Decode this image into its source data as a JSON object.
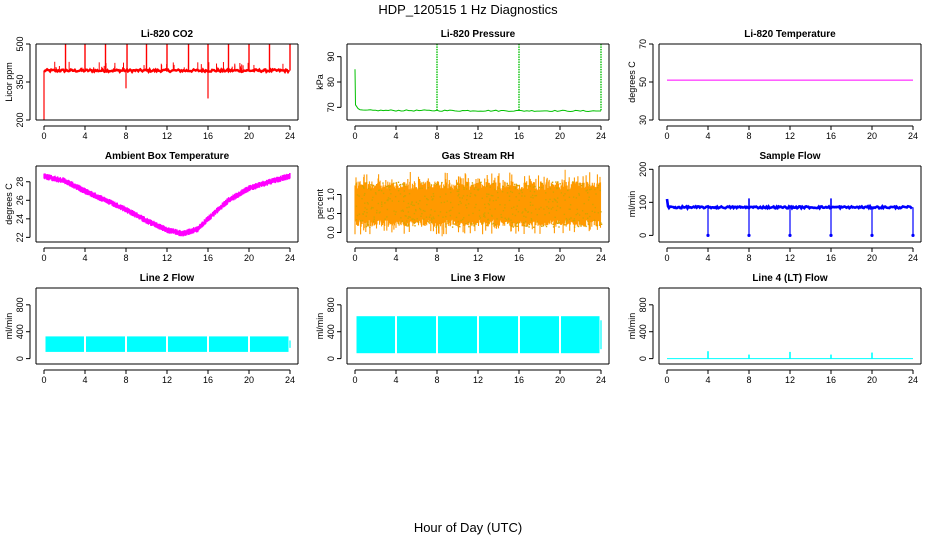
{
  "page": {
    "title": "HDP_120515  1 Hz Diagnostics",
    "xlabel": "Hour of Day (UTC)"
  },
  "chart_data": [
    {
      "id": "co2",
      "type": "line",
      "title": "Li-820 CO2",
      "ylabel": "Licor ppm",
      "color": "#ff0000",
      "xlim": [
        0,
        24
      ],
      "ylim": [
        200,
        500
      ],
      "yticks": [
        200,
        350,
        500
      ],
      "xticks": [
        0,
        4,
        8,
        12,
        16,
        20,
        24
      ],
      "pattern": "co2",
      "series": [
        {
          "name": "CO2",
          "baseline": 395,
          "spikes_up_hours": [
            2.1,
            4,
            6,
            8.1,
            10,
            12,
            14.1,
            16,
            18,
            20,
            22,
            24
          ],
          "spike_up_value": 500,
          "dips": [
            {
              "hour": 0,
              "value": 200
            },
            {
              "hour": 8,
              "value": 325
            },
            {
              "hour": 16,
              "value": 285
            }
          ]
        }
      ]
    },
    {
      "id": "pressure",
      "type": "line",
      "title": "Li-820 Pressure",
      "ylabel": "kPa",
      "color": "#00c000",
      "xlim": [
        0,
        24
      ],
      "ylim": [
        65,
        95
      ],
      "yticks": [
        70,
        80,
        90
      ],
      "xticks": [
        0,
        4,
        8,
        12,
        16,
        20,
        24
      ],
      "pattern": "pressure",
      "series": [
        {
          "name": "Pressure",
          "baseline": 68.8,
          "start_value": 85,
          "spikes_hours": [
            8,
            16,
            24
          ],
          "spike_value": 95
        }
      ]
    },
    {
      "id": "temperature",
      "type": "line",
      "title": "Li-820 Temperature",
      "ylabel": "degrees C",
      "color": "#ff00ff",
      "xlim": [
        0,
        24
      ],
      "ylim": [
        30,
        70
      ],
      "yticks": [
        30,
        50,
        70
      ],
      "xticks": [
        0,
        4,
        8,
        12,
        16,
        20,
        24
      ],
      "pattern": "flat",
      "series": [
        {
          "name": "Temperature",
          "value": 51
        }
      ]
    },
    {
      "id": "ambient",
      "type": "line",
      "title": "Ambient Box Temperature",
      "ylabel": "degrees C",
      "color": "#ff00ff",
      "xlim": [
        0,
        24
      ],
      "ylim": [
        21.5,
        29.7
      ],
      "yticks": [
        22,
        24,
        26,
        28
      ],
      "xticks": [
        0,
        4,
        8,
        12,
        16,
        20,
        24
      ],
      "pattern": "ambient",
      "series": [
        {
          "name": "Ambient",
          "points": [
            [
              0,
              28.6
            ],
            [
              2,
              28.1
            ],
            [
              4,
              27.0
            ],
            [
              6,
              26.0
            ],
            [
              8,
              25.0
            ],
            [
              10,
              23.8
            ],
            [
              12,
              22.8
            ],
            [
              13.5,
              22.4
            ],
            [
              15,
              22.9
            ],
            [
              16,
              24.0
            ],
            [
              18,
              26.0
            ],
            [
              20,
              27.3
            ],
            [
              22,
              28.0
            ],
            [
              24,
              28.6
            ]
          ],
          "noise": 0.35
        }
      ]
    },
    {
      "id": "rh",
      "type": "line",
      "title": "Gas Stream RH",
      "ylabel": "percent",
      "color": "#ff9900",
      "fill_color": "#d4a400",
      "xlim": [
        0,
        24
      ],
      "ylim": [
        -0.25,
        1.75
      ],
      "yticks": [
        0.0,
        0.5,
        1.0
      ],
      "xticks": [
        0,
        4,
        8,
        12,
        16,
        20,
        24
      ],
      "pattern": "rh",
      "series": [
        {
          "name": "RH",
          "low": 0.15,
          "high": 1.35,
          "outlier_low": -0.1,
          "outlier_high": 1.65
        }
      ]
    },
    {
      "id": "sample_flow",
      "type": "line",
      "title": "Sample Flow",
      "ylabel": "ml/min",
      "color": "#0000ff",
      "xlim": [
        0,
        24
      ],
      "ylim": [
        -20,
        210
      ],
      "yticks": [
        0,
        100,
        200
      ],
      "xticks": [
        0,
        4,
        8,
        12,
        16,
        20,
        24
      ],
      "pattern": "sample",
      "series": [
        {
          "name": "Sample",
          "baseline": 85,
          "drops_hours": [
            4,
            8,
            12,
            16,
            20,
            24
          ],
          "spikes_hours": [
            8,
            16
          ]
        }
      ]
    },
    {
      "id": "line2",
      "type": "line",
      "title": "Line 2 Flow",
      "ylabel": "ml/min",
      "color": "#00ffff",
      "xlim": [
        0,
        24
      ],
      "ylim": [
        -80,
        1050
      ],
      "yticks": [
        0,
        400,
        800
      ],
      "xticks": [
        0,
        4,
        8,
        12,
        16,
        20,
        24
      ],
      "pattern": "block",
      "series": [
        {
          "name": "Line 2",
          "low": 100,
          "high": 330,
          "gaps_hours": [
            4,
            8,
            12,
            16,
            20
          ]
        }
      ]
    },
    {
      "id": "line3",
      "type": "line",
      "title": "Line 3 Flow",
      "ylabel": "ml/min",
      "color": "#00ffff",
      "xlim": [
        0,
        24
      ],
      "ylim": [
        -80,
        1050
      ],
      "yticks": [
        0,
        400,
        800
      ],
      "xticks": [
        0,
        4,
        8,
        12,
        16,
        20,
        24
      ],
      "pattern": "block",
      "series": [
        {
          "name": "Line 3",
          "low": 80,
          "high": 630,
          "gaps_hours": [
            4,
            8,
            12,
            16,
            20
          ]
        }
      ]
    },
    {
      "id": "line4",
      "type": "line",
      "title": "Line 4 (LT) Flow",
      "ylabel": "ml/min",
      "color": "#00ffff",
      "xlim": [
        0,
        24
      ],
      "ylim": [
        -80,
        1050
      ],
      "yticks": [
        0,
        400,
        800
      ],
      "xticks": [
        0,
        4,
        8,
        12,
        16,
        20,
        24
      ],
      "pattern": "line4",
      "series": [
        {
          "name": "Line 4",
          "baseline": 0,
          "spikes": [
            {
              "hour": 4,
              "value": 110
            },
            {
              "hour": 8,
              "value": 60
            },
            {
              "hour": 12,
              "value": 100
            },
            {
              "hour": 16,
              "value": 60
            },
            {
              "hour": 20,
              "value": 90
            }
          ]
        }
      ]
    }
  ]
}
